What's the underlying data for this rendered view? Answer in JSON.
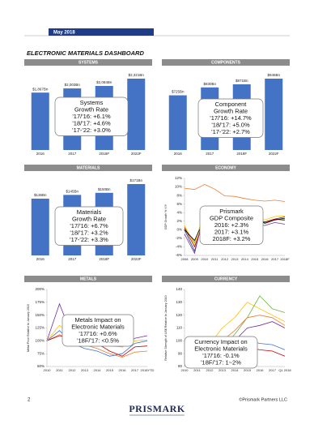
{
  "header": {
    "date": "May 2018",
    "title": "ELECTRONIC MATERIALS DASHBOARD"
  },
  "footer": {
    "page": "2",
    "logo": "PRISMARK",
    "copyright": "©Prismark Partners LLC"
  },
  "chart_data": [
    {
      "type": "bar",
      "title": "SYSTEMS",
      "categories": [
        "2016",
        "2017",
        "2018F",
        "2022F"
      ],
      "values": [
        1867,
        2003,
        2084,
        2321
      ],
      "value_labels": [
        "$1,867Bn",
        "$2,003Bn",
        "$2,084Bn",
        "$2,321Bn"
      ],
      "color": "#4472c4",
      "annotation": [
        "Systems",
        "Growth Rate",
        "'17/'16: +6.1%",
        "'18/'17: +4.6%",
        "'17-'22: +3.0%"
      ]
    },
    {
      "type": "bar",
      "title": "COMPONENTS",
      "categories": [
        "2016",
        "2017",
        "2018F",
        "2022F"
      ],
      "values": [
        725,
        830,
        871,
        946
      ],
      "value_labels": [
        "$725Bn",
        "$830Bn",
        "$871Bn",
        "$946Bn"
      ],
      "color": "#4472c4",
      "annotation": [
        "Component",
        "Growth Rate",
        "'17/'16: +14.7%",
        "'18/'17: +5.0%",
        "'17-'22: +2.7%"
      ]
    },
    {
      "type": "bar",
      "title": "MATERIALS",
      "categories": [
        "2016",
        "2017",
        "2018F",
        "2022F"
      ],
      "values": [
        136,
        145,
        150,
        171
      ],
      "value_labels": [
        "$136Bn",
        "$145Bn",
        "$150Bn",
        "$171Bn"
      ],
      "color": "#4472c4",
      "annotation": [
        "Materials",
        "Growth Rate",
        "'17/'16: +6.7%",
        "'18/'17: +3.2%",
        "'17-'22: +3.3%"
      ]
    },
    {
      "type": "line",
      "title": "ECONOMY",
      "y_label": "GDP Growth % Y/Y",
      "categories": [
        "2008",
        "2009",
        "2010",
        "2011",
        "2012",
        "2013",
        "2014",
        "2015",
        "2016",
        "2017",
        "2018F"
      ],
      "ylim": [
        -6,
        12
      ],
      "yticks": [
        {
          "value": -6,
          "label": "-6%"
        },
        {
          "value": -4,
          "label": "-4%"
        },
        {
          "value": -2,
          "label": "-2%"
        },
        {
          "value": 0,
          "label": "0%"
        },
        {
          "value": 2,
          "label": "2%"
        },
        {
          "value": 4,
          "label": "4%"
        },
        {
          "value": 6,
          "label": "6%"
        },
        {
          "value": 8,
          "label": "8%"
        },
        {
          "value": 10,
          "label": "10%"
        },
        {
          "value": 12,
          "label": "12%"
        }
      ],
      "series": [
        {
          "color": "#ed7d31",
          "values": [
            9.7,
            9.4,
            10.6,
            9.5,
            7.9,
            7.8,
            7.3,
            6.9,
            6.7,
            6.9,
            6.6
          ]
        },
        {
          "color": "#1f3c88",
          "values": [
            0,
            -5,
            3.5,
            2,
            1.8,
            1.5,
            2,
            2.3,
            1.8,
            2.5,
            3
          ]
        },
        {
          "color": "#70ad47",
          "values": [
            0.5,
            -3,
            4,
            2.5,
            1.5,
            1.5,
            2,
            2,
            1.7,
            2.3,
            2.5
          ]
        },
        {
          "color": "#ffc000",
          "values": [
            1,
            -3.5,
            4.5,
            3,
            2.5,
            2.2,
            2.5,
            2.6,
            2.3,
            3.1,
            3.2
          ]
        },
        {
          "color": "#7030a0",
          "values": [
            -1,
            -5.5,
            4.3,
            0,
            1.5,
            2,
            0.5,
            1.3,
            1,
            1.7,
            1.3
          ]
        },
        {
          "color": "#c00000",
          "values": [
            0.5,
            -4,
            2.5,
            1.6,
            -0.5,
            0,
            1.2,
            2,
            1.8,
            2.5,
            2.2
          ]
        },
        {
          "color": "#000000",
          "values": [
            0,
            -2.5,
            2.5,
            1.6,
            2.2,
            1.7,
            2.6,
            2.9,
            1.5,
            2.3,
            2.7
          ]
        }
      ],
      "annotation": [
        "Prismark",
        "GDP Composite",
        "2016: +2.3%",
        "2017: +3.1%",
        "2018F: +3.2%"
      ]
    },
    {
      "type": "line",
      "title": "METALS",
      "y_label": "Metal Price Relative to January 2010",
      "categories": [
        "2010",
        "2011",
        "2012",
        "2013",
        "2014",
        "2015",
        "2016",
        "2017",
        "2018YTD"
      ],
      "ylim": [
        50,
        200
      ],
      "yticks": [
        {
          "value": 50,
          "label": "50%"
        },
        {
          "value": 75,
          "label": "75%"
        },
        {
          "value": 100,
          "label": "100%"
        },
        {
          "value": 125,
          "label": "125%"
        },
        {
          "value": 150,
          "label": "150%"
        },
        {
          "value": 175,
          "label": "175%"
        },
        {
          "value": 200,
          "label": "200%"
        }
      ],
      "series": [
        {
          "color": "#7030a0",
          "values": [
            100,
            172,
            110,
            103,
            100,
            92,
            88,
            105,
            110
          ]
        },
        {
          "color": "#ed7d31",
          "values": [
            100,
            112,
            100,
            92,
            85,
            75,
            68,
            78,
            80
          ]
        },
        {
          "color": "#c00000",
          "values": [
            100,
            110,
            105,
            98,
            95,
            80,
            70,
            88,
            90
          ]
        },
        {
          "color": "#4472c4",
          "values": [
            100,
            120,
            95,
            85,
            80,
            70,
            75,
            95,
            100
          ]
        },
        {
          "color": "#ffc000",
          "values": [
            100,
            130,
            110,
            100,
            95,
            90,
            88,
            100,
            102
          ]
        }
      ],
      "annotation": [
        "Metals Impact on",
        "Electronic Materials",
        "'17/'16: +0.6%",
        "'18F/'17: <0.5%"
      ]
    },
    {
      "type": "line",
      "title": "CURRENCY",
      "y_label": "Relative Strength of US$ Relative to January 2010",
      "categories": [
        "2010",
        "2011",
        "2012",
        "2013",
        "2014",
        "2015",
        "2016",
        "2017",
        "Q1 2018"
      ],
      "ylim": [
        80,
        140
      ],
      "yticks": [
        80,
        90,
        100,
        110,
        120,
        130,
        140
      ],
      "series": [
        {
          "color": "#ffc000",
          "values": [
            100,
            95,
            97,
            110,
            118,
            130,
            125,
            120,
            115
          ]
        },
        {
          "color": "#70ad47",
          "values": [
            100,
            95,
            93,
            95,
            105,
            118,
            135,
            125,
            122
          ]
        },
        {
          "color": "#ed7d31",
          "values": [
            100,
            98,
            95,
            100,
            108,
            118,
            120,
            118,
            112
          ]
        },
        {
          "color": "#4472c4",
          "values": [
            100,
            92,
            88,
            90,
            95,
            100,
            98,
            97,
            93
          ]
        },
        {
          "color": "#7030a0",
          "values": [
            100,
            98,
            96,
            95,
            100,
            110,
            112,
            115,
            110
          ]
        },
        {
          "color": "#c00000",
          "values": [
            100,
            97,
            93,
            90,
            92,
            95,
            93,
            92,
            88
          ]
        }
      ],
      "annotation": [
        "Currency Impact on",
        "Electronic Materials",
        "'17/'16: -0.1%",
        "'18F/'17: 1~2%"
      ]
    }
  ]
}
